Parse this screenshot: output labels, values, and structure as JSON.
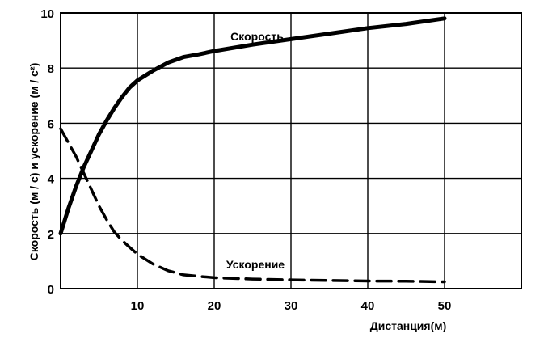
{
  "chart_data": {
    "type": "line",
    "xlabel": "Дистанция(м)",
    "ylabel": "Скорость (м / с)  и ускорение (м / с²)",
    "xlim": [
      0,
      60
    ],
    "ylim": [
      0,
      10
    ],
    "x_ticks": [
      10,
      20,
      30,
      40,
      50
    ],
    "y_ticks": [
      0,
      2,
      4,
      6,
      8,
      10
    ],
    "grid": true,
    "series": [
      {
        "name": "Скорость",
        "style": "solid",
        "x": [
          0,
          1,
          2,
          3,
          4,
          5,
          6,
          7,
          8,
          9,
          10,
          12,
          14,
          16,
          18,
          20,
          25,
          30,
          35,
          40,
          45,
          50
        ],
        "y": [
          2.0,
          2.9,
          3.7,
          4.4,
          5.0,
          5.6,
          6.1,
          6.55,
          6.95,
          7.3,
          7.55,
          7.9,
          8.2,
          8.4,
          8.5,
          8.62,
          8.85,
          9.05,
          9.25,
          9.45,
          9.6,
          9.8
        ]
      },
      {
        "name": "Ускорение",
        "style": "dashed",
        "x": [
          0,
          1,
          2,
          3,
          4,
          5,
          6,
          7,
          8,
          9,
          10,
          12,
          14,
          16,
          18,
          20,
          25,
          30,
          35,
          40,
          45,
          50
        ],
        "y": [
          5.8,
          5.3,
          4.8,
          4.2,
          3.6,
          3.0,
          2.5,
          2.05,
          1.75,
          1.5,
          1.25,
          0.9,
          0.65,
          0.5,
          0.45,
          0.4,
          0.35,
          0.32,
          0.3,
          0.28,
          0.27,
          0.25
        ]
      }
    ]
  }
}
